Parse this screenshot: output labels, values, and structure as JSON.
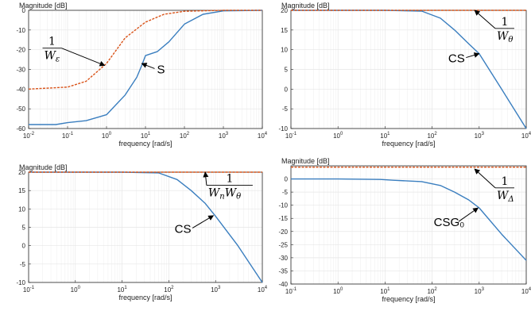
{
  "colors": {
    "series_blue": "#3a7ebf",
    "series_orange": "#d95319",
    "grid": "#e6e6e6",
    "axes": "#262626"
  },
  "chart_data": [
    {
      "type": "line",
      "ylabel": "Magnitude [dB]",
      "xlabel": "frequency [rad/s]",
      "xscale": "log",
      "xlim": [
        0.01,
        10000
      ],
      "ylim": [
        -60,
        0
      ],
      "x_ticks": [
        {
          "v": 0.01,
          "b": "10",
          "e": "-2"
        },
        {
          "v": 0.1,
          "b": "10",
          "e": "-1"
        },
        {
          "v": 1,
          "b": "10",
          "e": "0"
        },
        {
          "v": 10,
          "b": "10",
          "e": "1"
        },
        {
          "v": 100,
          "b": "10",
          "e": "2"
        },
        {
          "v": 1000,
          "b": "10",
          "e": "3"
        },
        {
          "v": 10000,
          "b": "10",
          "e": "4"
        }
      ],
      "y_ticks": [
        "0",
        "-10",
        "-20",
        "-30",
        "-40",
        "-50",
        "-60"
      ],
      "grid": true,
      "series": [
        {
          "color_key": "series_blue",
          "style": "solid",
          "points": [
            [
              0.01,
              -58
            ],
            [
              0.05,
              -58
            ],
            [
              0.1,
              -57
            ],
            [
              0.3,
              -56
            ],
            [
              1,
              -53
            ],
            [
              3,
              -43
            ],
            [
              6,
              -34
            ],
            [
              8,
              -28
            ],
            [
              10,
              -23
            ],
            [
              20,
              -21
            ],
            [
              40,
              -16
            ],
            [
              100,
              -7
            ],
            [
              300,
              -2
            ],
            [
              1000,
              -0.3
            ],
            [
              10000,
              0
            ]
          ]
        },
        {
          "color_key": "series_orange",
          "style": "dashed",
          "points": [
            [
              0.01,
              -40
            ],
            [
              0.1,
              -39
            ],
            [
              0.3,
              -36
            ],
            [
              1,
              -27
            ],
            [
              3,
              -14
            ],
            [
              10,
              -6
            ],
            [
              30,
              -2
            ],
            [
              100,
              -0.5
            ],
            [
              1000,
              0
            ],
            [
              10000,
              0
            ]
          ]
        }
      ],
      "annotations": [
        {
          "type": "fraction",
          "num": "1",
          "den": "W",
          "sub": "ε",
          "x": 0.04,
          "y": -20,
          "arrow_to": [
            0.9,
            -28
          ]
        },
        {
          "type": "text",
          "text": "S",
          "x": 25,
          "y": -32,
          "arrow_to": [
            8,
            -27
          ]
        }
      ]
    },
    {
      "type": "line",
      "ylabel": "Magnitude [dB]",
      "xlabel": "frequency [rad/s]",
      "xscale": "log",
      "xlim": [
        0.1,
        10000
      ],
      "ylim": [
        -10,
        20
      ],
      "x_ticks": [
        {
          "v": 0.1,
          "b": "10",
          "e": "-1"
        },
        {
          "v": 1,
          "b": "10",
          "e": "0"
        },
        {
          "v": 10,
          "b": "10",
          "e": "1"
        },
        {
          "v": 100,
          "b": "10",
          "e": "2"
        },
        {
          "v": 1000,
          "b": "10",
          "e": "3"
        },
        {
          "v": 10000,
          "b": "10",
          "e": "4"
        }
      ],
      "y_ticks": [
        "20",
        "15",
        "10",
        "5",
        "0",
        "-5",
        "-10"
      ],
      "grid": true,
      "series": [
        {
          "color_key": "series_blue",
          "style": "solid",
          "points": [
            [
              0.1,
              20
            ],
            [
              1,
              20
            ],
            [
              10,
              20
            ],
            [
              60,
              19.8
            ],
            [
              150,
              18
            ],
            [
              300,
              15
            ],
            [
              600,
              11.5
            ],
            [
              1000,
              9
            ],
            [
              3000,
              0
            ],
            [
              10000,
              -10
            ]
          ]
        },
        {
          "color_key": "series_orange",
          "style": "dashed",
          "points": [
            [
              0.1,
              20
            ],
            [
              10000,
              20
            ]
          ]
        }
      ],
      "annotations": [
        {
          "type": "fraction",
          "num": "1",
          "den": "W",
          "sub": "θ",
          "x": 3500,
          "y": 15,
          "arrow_to": [
            800,
            20
          ]
        },
        {
          "type": "text",
          "text": "CS",
          "x": 330,
          "y": 6.8,
          "arrow_to": [
            1000,
            9
          ]
        }
      ]
    },
    {
      "type": "line",
      "ylabel": "Magnitude [dB]",
      "xlabel": "frequency [rad/s]",
      "xscale": "log",
      "xlim": [
        0.1,
        10000
      ],
      "ylim": [
        -10,
        20
      ],
      "x_ticks": [
        {
          "v": 0.1,
          "b": "10",
          "e": "-1"
        },
        {
          "v": 1,
          "b": "10",
          "e": "0"
        },
        {
          "v": 10,
          "b": "10",
          "e": "1"
        },
        {
          "v": 100,
          "b": "10",
          "e": "2"
        },
        {
          "v": 1000,
          "b": "10",
          "e": "3"
        },
        {
          "v": 10000,
          "b": "10",
          "e": "4"
        }
      ],
      "y_ticks": [
        "20",
        "15",
        "10",
        "5",
        "0",
        "-5",
        "-10"
      ],
      "grid": true,
      "series": [
        {
          "color_key": "series_blue",
          "style": "solid",
          "points": [
            [
              0.1,
              20
            ],
            [
              1,
              20
            ],
            [
              10,
              20
            ],
            [
              60,
              19.8
            ],
            [
              150,
              18
            ],
            [
              300,
              15
            ],
            [
              600,
              11.5
            ],
            [
              1000,
              8
            ],
            [
              3000,
              0
            ],
            [
              10000,
              -10
            ]
          ]
        },
        {
          "color_key": "series_orange",
          "style": "dashed",
          "points": [
            [
              0.1,
              20
            ],
            [
              10000,
              20
            ]
          ]
        }
      ],
      "annotations": [
        {
          "type": "fraction",
          "num": "1",
          "den": "W",
          "sub": "n",
          "den2": "W",
          "sub2": "θ",
          "x": 2000,
          "y": 16,
          "arrow_to": [
            600,
            20
          ]
        },
        {
          "type": "text",
          "text": "CS",
          "x": 200,
          "y": 3.5,
          "arrow_to": [
            900,
            8.2
          ]
        }
      ]
    },
    {
      "type": "line",
      "ylabel": "Magnitude [dB]",
      "xlabel": "frequency [rad/s]",
      "xscale": "log",
      "xlim": [
        0.1,
        10000
      ],
      "ylim": [
        -40,
        5
      ],
      "x_ticks": [
        {
          "v": 0.1,
          "b": "10",
          "e": "-1"
        },
        {
          "v": 1,
          "b": "10",
          "e": "0"
        },
        {
          "v": 10,
          "b": "10",
          "e": "1"
        },
        {
          "v": 100,
          "b": "10",
          "e": "2"
        },
        {
          "v": 1000,
          "b": "10",
          "e": "3"
        },
        {
          "v": 10000,
          "b": "10",
          "e": "4"
        }
      ],
      "y_ticks": [
        "0",
        "-5",
        "-10",
        "-15",
        "-20",
        "-25",
        "-30",
        "-35",
        "-40"
      ],
      "grid": true,
      "series": [
        {
          "color_key": "series_blue",
          "style": "solid",
          "points": [
            [
              0.1,
              0
            ],
            [
              1,
              0
            ],
            [
              8,
              -0.2
            ],
            [
              15,
              -0.5
            ],
            [
              60,
              -1
            ],
            [
              150,
              -2.5
            ],
            [
              300,
              -5
            ],
            [
              600,
              -8
            ],
            [
              1000,
              -11
            ],
            [
              3000,
              -21
            ],
            [
              10000,
              -31
            ]
          ]
        },
        {
          "color_key": "series_orange",
          "style": "dashed",
          "points": [
            [
              0.1,
              4.5
            ],
            [
              10000,
              4.5
            ]
          ]
        }
      ],
      "annotations": [
        {
          "type": "fraction",
          "num": "1",
          "den": "W",
          "sub": "Δ",
          "x": 3500,
          "y": -4,
          "arrow_to": [
            800,
            3.8
          ]
        },
        {
          "type": "text",
          "text": "CSG₀",
          "x": 230,
          "y": -18,
          "arrow_to": [
            950,
            -11
          ]
        }
      ]
    }
  ]
}
